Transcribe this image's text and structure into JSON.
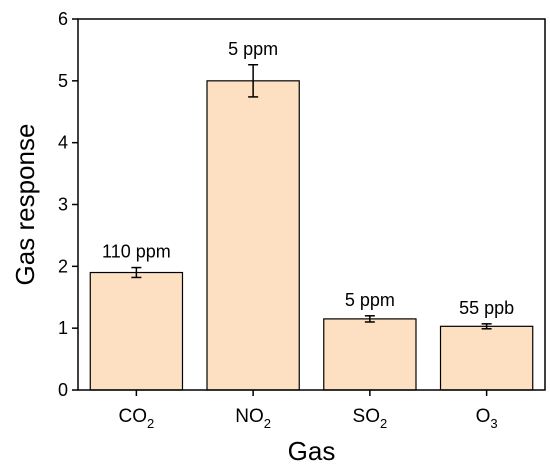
{
  "chart_data": {
    "type": "bar",
    "title": "",
    "xlabel": "Gas",
    "ylabel": "Gas response",
    "ylim": [
      0,
      6
    ],
    "yticks": [
      0,
      1,
      2,
      3,
      4,
      5,
      6
    ],
    "categories": [
      {
        "base": "CO",
        "sub": "2"
      },
      {
        "base": "NO",
        "sub": "2"
      },
      {
        "base": "SO",
        "sub": "2"
      },
      {
        "base": "O",
        "sub": "3"
      }
    ],
    "values": [
      1.9,
      5.0,
      1.15,
      1.03
    ],
    "errors": [
      0.08,
      0.26,
      0.05,
      0.04
    ],
    "bar_labels": [
      "110 ppm",
      "5 ppm",
      "5 ppm",
      "55 ppb"
    ],
    "bar_color": "#fde0c2",
    "edge_color": "#000000",
    "grid": false,
    "legend": "none"
  }
}
